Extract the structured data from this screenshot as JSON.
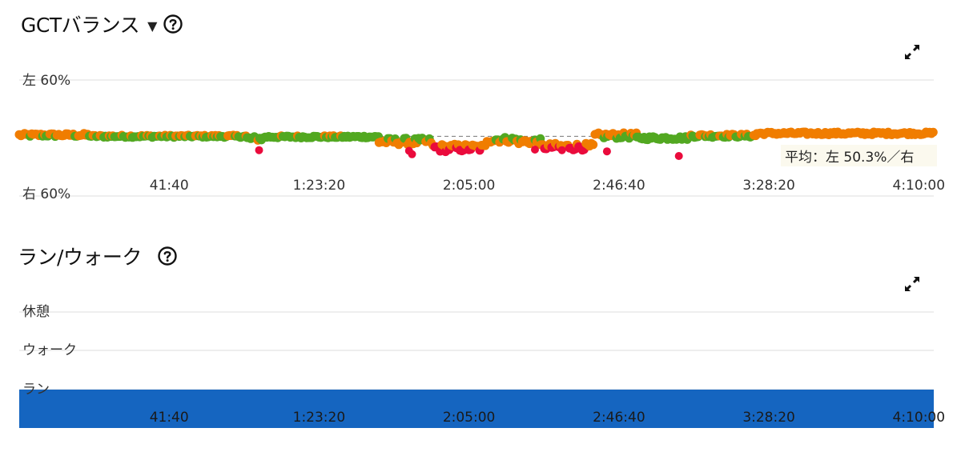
{
  "gct_panel": {
    "title": "GCTバランス",
    "dropdown_icon": "caret-down-icon",
    "help_icon": "question-circle-icon",
    "expand_icon": "expand-icon"
  },
  "run_walk_panel": {
    "title": "ラン/ウォーク",
    "help_icon": "question-circle-icon",
    "expand_icon": "expand-icon"
  },
  "colors": {
    "green": "#52a821",
    "orange": "#f07d00",
    "red": "#ea0b3c",
    "run_bar": "#1565c0",
    "grid": "#dcdcdc"
  },
  "chart_data": [
    {
      "type": "scatter",
      "title": "GCTバランス",
      "y_tick_labels": [
        "左 60%",
        "右 60%"
      ],
      "x_tick_labels": [
        "41:40",
        "1:23:20",
        "2:05:00",
        "2:46:40",
        "3:28:20",
        "4:10:00"
      ],
      "x_ticks_seconds": [
        2500,
        5000,
        7500,
        10000,
        12500,
        15000
      ],
      "xlim_seconds": [
        0,
        15250
      ],
      "ylim_left_pct": [
        40,
        60
      ],
      "average_label": "平均：左 50.3%／右",
      "average_left_pct": 50.3,
      "series_colors": {
        "balanced": "green",
        "moderate": "orange",
        "imbalanced": "red"
      },
      "segments": [
        {
          "t": [
            0,
            1200
          ],
          "left_pct": 50.5,
          "spread": 0.3
        },
        {
          "t": [
            1200,
            3800
          ],
          "left_pct": 50.3,
          "spread": 0.2
        },
        {
          "t": [
            3800,
            4100
          ],
          "left_pct": 49.9,
          "spread": 0.4
        },
        {
          "t": [
            4100,
            6000
          ],
          "left_pct": 50.2,
          "spread": 0.2
        },
        {
          "t": [
            6000,
            6900
          ],
          "left_pct": 49.4,
          "spread": 0.6
        },
        {
          "t": [
            6900,
            7800
          ],
          "left_pct": 48.3,
          "spread": 0.7
        },
        {
          "t": [
            7800,
            8300
          ],
          "left_pct": 49.7,
          "spread": 0.5
        },
        {
          "t": [
            8300,
            8700
          ],
          "left_pct": 49.4,
          "spread": 0.5
        },
        {
          "t": [
            8700,
            9600
          ],
          "left_pct": 48.5,
          "spread": 0.6
        },
        {
          "t": [
            9600,
            10300
          ],
          "left_pct": 50.4,
          "spread": 0.5
        },
        {
          "t": [
            10300,
            11200
          ],
          "left_pct": 50.0,
          "spread": 0.3
        },
        {
          "t": [
            11200,
            12300
          ],
          "left_pct": 50.4,
          "spread": 0.3
        },
        {
          "t": [
            12300,
            15250
          ],
          "left_pct": 50.8,
          "spread": 0.25
        }
      ],
      "outliers": [
        {
          "t": 4000,
          "left_pct": 47.9
        },
        {
          "t": 6500,
          "left_pct": 47.8
        },
        {
          "t": 6550,
          "left_pct": 47.2
        },
        {
          "t": 8600,
          "left_pct": 48.0
        },
        {
          "t": 9050,
          "left_pct": 47.9
        },
        {
          "t": 9800,
          "left_pct": 47.7
        },
        {
          "t": 11000,
          "left_pct": 46.9
        }
      ]
    },
    {
      "type": "bar",
      "title": "ラン/ウォーク",
      "categories": [
        "休憩",
        "ウォーク",
        "ラン"
      ],
      "x_tick_labels": [
        "41:40",
        "1:23:20",
        "2:05:00",
        "2:46:40",
        "3:28:20",
        "4:10:00"
      ],
      "x_ticks_seconds": [
        2500,
        5000,
        7500,
        10000,
        12500,
        15000
      ],
      "xlim_seconds": [
        0,
        15250
      ],
      "intervals": [
        {
          "category": "ラン",
          "start_seconds": 0,
          "end_seconds": 15250
        }
      ]
    }
  ]
}
